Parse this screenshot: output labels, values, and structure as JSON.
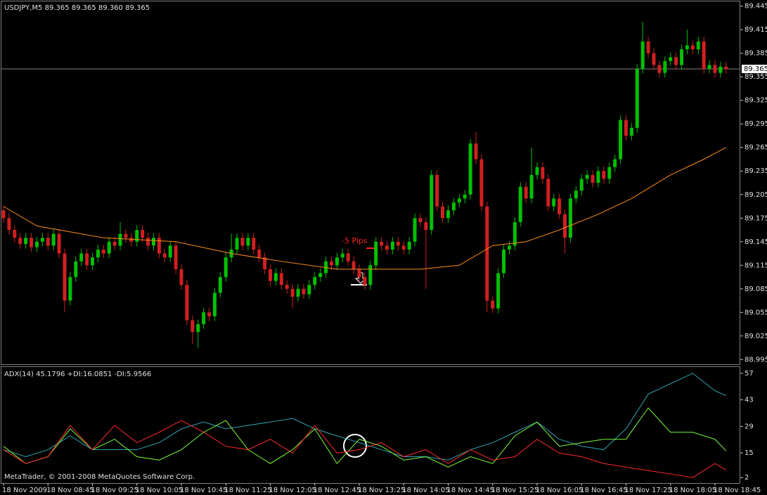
{
  "chart_data": [
    {
      "type": "candlestick",
      "title": "USDJPY,M5  89.365 89.365 89.360 89.365",
      "categories": [
        "18 Nov 2009",
        null,
        null,
        null,
        null,
        null,
        null,
        null,
        "18 Nov 08:45",
        null,
        null,
        null,
        null,
        null,
        null,
        null,
        "18 Nov 09:25",
        null,
        null,
        null,
        null,
        null,
        null,
        null,
        "18 Nov 10:05",
        null,
        null,
        null,
        null,
        null,
        null,
        null,
        "18 Nov 10:45",
        null,
        null,
        null,
        null,
        null,
        null,
        null,
        "18 Nov 11:25",
        null,
        null,
        null,
        null,
        null,
        null,
        null,
        "18 Nov 12:05",
        null,
        null,
        null,
        null,
        null,
        null,
        null,
        "18 Nov 12:45",
        null,
        null,
        null,
        null,
        null,
        null,
        null,
        "18 Nov 13:25",
        null,
        null,
        null,
        null,
        null,
        null,
        null,
        "18 Nov 14:05",
        null,
        null,
        null,
        null,
        null,
        null,
        null,
        "18 Nov 14:45",
        null,
        null,
        null,
        null,
        null,
        null,
        null,
        "18 Nov 15:25",
        null,
        null,
        null,
        null,
        null,
        null,
        null,
        "18 Nov 16:05",
        null,
        null,
        null,
        null,
        null,
        null,
        null,
        "18 Nov 16:45",
        null,
        null,
        null,
        null,
        null,
        null,
        null,
        "18 Nov 17:25",
        null,
        null,
        null,
        null,
        null,
        null,
        null,
        "18 Nov 18:05",
        null,
        null,
        null,
        null,
        null,
        null,
        null,
        "18 Nov 18:45",
        null,
        null
      ],
      "open": [
        89.185,
        89.175,
        89.16,
        89.15,
        89.142,
        89.15,
        89.138,
        89.145,
        89.15,
        89.14,
        89.155,
        89.13,
        89.07,
        89.1,
        89.12,
        89.13,
        89.115,
        89.125,
        89.135,
        89.13,
        89.145,
        89.14,
        89.155,
        89.15,
        89.145,
        89.16,
        89.15,
        89.14,
        89.15,
        89.13,
        89.125,
        89.14,
        89.11,
        89.09,
        89.045,
        89.03,
        89.04,
        89.055,
        89.05,
        89.08,
        89.1,
        89.125,
        89.135,
        89.15,
        89.14,
        89.15,
        89.135,
        89.125,
        89.11,
        89.095,
        89.105,
        89.09,
        89.085,
        89.075,
        89.085,
        89.078,
        89.09,
        89.1,
        89.105,
        89.12,
        89.115,
        89.125,
        89.13,
        89.12,
        89.11,
        89.1,
        89.09,
        89.115,
        89.145,
        89.14,
        89.135,
        89.145,
        89.14,
        89.135,
        89.145,
        89.175,
        89.17,
        89.16,
        89.23,
        89.19,
        89.175,
        89.185,
        89.195,
        89.2,
        89.205,
        89.27,
        89.25,
        89.19,
        89.07,
        89.06,
        89.105,
        89.135,
        89.14,
        89.17,
        89.215,
        89.2,
        89.23,
        89.24,
        89.225,
        89.19,
        89.2,
        89.18,
        89.15,
        89.2,
        89.21,
        89.225,
        89.23,
        89.22,
        89.235,
        89.225,
        89.24,
        89.25,
        89.3,
        89.28,
        89.29,
        89.365,
        89.4,
        89.385,
        89.37,
        89.36,
        89.375,
        89.38,
        89.37,
        89.39,
        89.395,
        89.39,
        89.4,
        89.365,
        89.37,
        89.36,
        89.368
      ],
      "high": [
        89.191,
        89.181,
        89.166,
        89.156,
        89.156,
        89.156,
        89.151,
        89.156,
        89.156,
        89.161,
        89.161,
        89.136,
        89.106,
        89.126,
        89.136,
        89.136,
        89.131,
        89.141,
        89.141,
        89.151,
        89.151,
        89.17,
        89.161,
        89.156,
        89.166,
        89.166,
        89.156,
        89.156,
        89.156,
        89.136,
        89.146,
        89.146,
        89.116,
        89.096,
        89.051,
        89.046,
        89.061,
        89.061,
        89.086,
        89.106,
        89.131,
        89.155,
        89.156,
        89.156,
        89.156,
        89.156,
        89.141,
        89.131,
        89.116,
        89.111,
        89.111,
        89.096,
        89.091,
        89.091,
        89.091,
        89.096,
        89.106,
        89.111,
        89.126,
        89.126,
        89.131,
        89.136,
        89.136,
        89.126,
        89.116,
        89.106,
        89.121,
        89.151,
        89.151,
        89.146,
        89.151,
        89.151,
        89.146,
        89.151,
        89.181,
        89.181,
        89.176,
        89.236,
        89.236,
        89.196,
        89.191,
        89.201,
        89.206,
        89.211,
        89.276,
        89.285,
        89.256,
        89.196,
        89.076,
        89.111,
        89.141,
        89.146,
        89.176,
        89.221,
        89.221,
        89.265,
        89.246,
        89.246,
        89.231,
        89.206,
        89.206,
        89.186,
        89.206,
        89.216,
        89.231,
        89.236,
        89.236,
        89.241,
        89.241,
        89.246,
        89.256,
        89.306,
        89.306,
        89.296,
        89.371,
        89.425,
        89.406,
        89.391,
        89.376,
        89.381,
        89.386,
        89.386,
        89.396,
        89.415,
        89.401,
        89.406,
        89.406,
        89.376,
        89.376,
        89.374,
        89.374
      ],
      "low": [
        89.169,
        89.154,
        89.144,
        89.136,
        89.136,
        89.132,
        89.132,
        89.139,
        89.134,
        89.134,
        89.124,
        89.055,
        89.064,
        89.094,
        89.114,
        89.109,
        89.109,
        89.119,
        89.124,
        89.124,
        89.134,
        89.134,
        89.144,
        89.139,
        89.139,
        89.144,
        89.134,
        89.134,
        89.124,
        89.119,
        89.119,
        89.104,
        89.084,
        89.039,
        89.015,
        89.01,
        89.034,
        89.044,
        89.044,
        89.074,
        89.094,
        89.119,
        89.129,
        89.134,
        89.134,
        89.129,
        89.119,
        89.104,
        89.089,
        89.089,
        89.084,
        89.079,
        89.06,
        89.069,
        89.072,
        89.072,
        89.084,
        89.094,
        89.099,
        89.109,
        89.109,
        89.119,
        89.114,
        89.104,
        89.094,
        89.084,
        89.084,
        89.109,
        89.134,
        89.129,
        89.129,
        89.134,
        89.129,
        89.129,
        89.139,
        89.164,
        89.085,
        89.154,
        89.184,
        89.169,
        89.169,
        89.179,
        89.189,
        89.194,
        89.199,
        89.244,
        89.184,
        89.055,
        89.054,
        89.054,
        89.099,
        89.129,
        89.134,
        89.164,
        89.194,
        89.194,
        89.224,
        89.219,
        89.184,
        89.184,
        89.174,
        89.13,
        89.144,
        89.194,
        89.204,
        89.219,
        89.214,
        89.214,
        89.219,
        89.219,
        89.234,
        89.244,
        89.274,
        89.274,
        89.284,
        89.359,
        89.379,
        89.364,
        89.354,
        89.354,
        89.369,
        89.364,
        89.364,
        89.384,
        89.384,
        89.384,
        89.359,
        89.359,
        89.354,
        89.354,
        89.359
      ],
      "close": [
        89.175,
        89.16,
        89.15,
        89.142,
        89.15,
        89.138,
        89.145,
        89.15,
        89.14,
        89.155,
        89.13,
        89.07,
        89.1,
        89.12,
        89.13,
        89.115,
        89.125,
        89.135,
        89.13,
        89.145,
        89.14,
        89.155,
        89.15,
        89.145,
        89.16,
        89.15,
        89.14,
        89.15,
        89.13,
        89.125,
        89.14,
        89.11,
        89.09,
        89.045,
        89.03,
        89.04,
        89.055,
        89.05,
        89.08,
        89.1,
        89.125,
        89.135,
        89.15,
        89.14,
        89.15,
        89.135,
        89.125,
        89.11,
        89.095,
        89.105,
        89.09,
        89.085,
        89.075,
        89.085,
        89.078,
        89.09,
        89.1,
        89.105,
        89.12,
        89.115,
        89.125,
        89.13,
        89.12,
        89.11,
        89.1,
        89.09,
        89.115,
        89.145,
        89.14,
        89.135,
        89.145,
        89.14,
        89.135,
        89.145,
        89.175,
        89.17,
        89.16,
        89.23,
        89.19,
        89.175,
        89.185,
        89.195,
        89.2,
        89.205,
        89.27,
        89.25,
        89.19,
        89.07,
        89.06,
        89.105,
        89.135,
        89.14,
        89.17,
        89.215,
        89.2,
        89.23,
        89.24,
        89.225,
        89.19,
        89.2,
        89.18,
        89.15,
        89.2,
        89.21,
        89.225,
        89.23,
        89.22,
        89.235,
        89.225,
        89.24,
        89.25,
        89.3,
        89.28,
        89.29,
        89.365,
        89.4,
        89.385,
        89.37,
        89.36,
        89.375,
        89.38,
        89.37,
        89.39,
        89.395,
        89.39,
        89.4,
        89.365,
        89.37,
        89.36,
        89.368,
        89.365
      ],
      "up_color": "#00c000",
      "down_color": "#d02020",
      "ma": {
        "color": "#ff8c1a",
        "x": [
          0,
          6,
          18,
          31,
          41,
          50,
          60,
          75,
          82,
          88,
          94,
          100,
          107,
          113,
          120,
          126,
          130
        ],
        "values": [
          89.19,
          89.165,
          89.15,
          89.145,
          89.13,
          89.12,
          89.11,
          89.11,
          89.115,
          89.14,
          89.145,
          89.16,
          89.18,
          89.2,
          89.23,
          89.25,
          89.265
        ]
      },
      "last_price": 89.365,
      "annotation": "-5 Pips",
      "ylim": [
        88.989,
        89.451
      ],
      "yticks": [
        89.445,
        89.415,
        89.385,
        89.355,
        89.325,
        89.295,
        89.265,
        89.235,
        89.205,
        89.175,
        89.145,
        89.115,
        89.085,
        89.055,
        89.025,
        88.995
      ]
    },
    {
      "type": "line",
      "title": "ADX(14) 45.1796 +DI:16.0851 -DI:5.9566",
      "x": [
        0,
        4,
        8,
        12,
        16,
        20,
        24,
        28,
        32,
        36,
        40,
        44,
        48,
        52,
        56,
        60,
        64,
        68,
        72,
        76,
        80,
        84,
        88,
        92,
        96,
        100,
        104,
        108,
        112,
        116,
        120,
        124,
        128,
        130
      ],
      "series": [
        {
          "color": "#2fa5b5",
          "values": [
            16.7,
            13,
            16.7,
            24,
            16.7,
            16.7,
            16.7,
            20.4,
            27.7,
            31.3,
            27.7,
            29.5,
            31.3,
            33.2,
            27.7,
            24,
            20.4,
            16.7,
            13,
            13,
            11.2,
            16.7,
            20.4,
            25.9,
            31.3,
            22.2,
            18.5,
            16.7,
            27.7,
            46,
            51.5,
            57,
            47.8,
            45.2
          ]
        },
        {
          "color": "#7cfc3a",
          "values": [
            18.5,
            9.4,
            13,
            27.7,
            16.7,
            22.2,
            13,
            11.2,
            16.7,
            25.9,
            32.1,
            16.7,
            9.4,
            16.7,
            27.7,
            9.4,
            22.2,
            18.5,
            11.2,
            13,
            7.5,
            13,
            9.4,
            24,
            31.3,
            18.5,
            20.4,
            22.2,
            22.2,
            38.7,
            25.9,
            25.9,
            22.2,
            16.1
          ]
        },
        {
          "color": "#ff2a2a",
          "values": [
            16.7,
            9.4,
            13,
            29.5,
            16.7,
            29.5,
            20.4,
            25.9,
            32.1,
            25.9,
            18.5,
            16.7,
            22.2,
            14.9,
            29.5,
            14.9,
            16.7,
            20.4,
            13,
            16.7,
            9.4,
            16.7,
            11.2,
            13,
            22.2,
            14.9,
            13,
            9.4,
            7.5,
            5.7,
            3.9,
            2,
            9.4,
            6
          ]
        }
      ],
      "watermark": "MetaTrader, © 2001-2008 MetaQuotes Software Corp.",
      "ylim": [
        -0.9,
        60.3
      ],
      "yticks": [
        57,
        43,
        29,
        15,
        2
      ]
    }
  ]
}
